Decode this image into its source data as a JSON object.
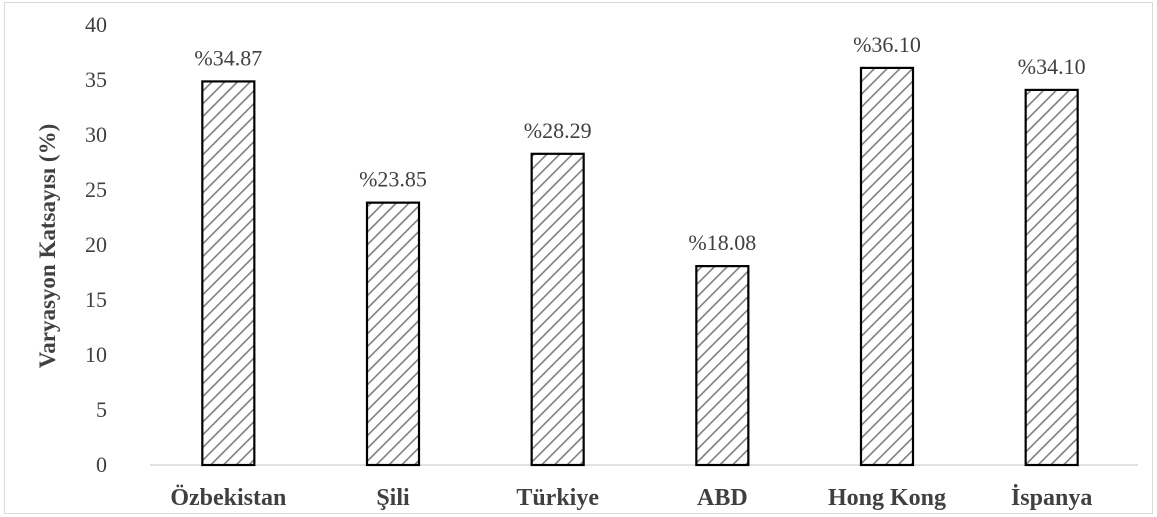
{
  "chart_data": {
    "type": "bar",
    "title": "",
    "xlabel": "",
    "ylabel": "Varyasyon Katsayısı (%)",
    "ylim": [
      0,
      40
    ],
    "yticks": [
      0,
      5,
      10,
      15,
      20,
      25,
      30,
      35,
      40
    ],
    "grid": false,
    "legend": "none",
    "categories": [
      "Özbekistan",
      "Şili",
      "Türkiye",
      "ABD",
      "Hong Kong",
      "İspanya"
    ],
    "values": [
      34.87,
      23.85,
      28.29,
      18.08,
      36.1,
      34.1
    ],
    "data_labels": [
      "%34.87",
      "%23.85",
      "%28.29",
      "%18.08",
      "%36.10",
      "%34.10"
    ],
    "bar_style": "diagonal-hatch",
    "colors": {
      "bar_fill": "#ffffff",
      "bar_outline": "#000000",
      "hatch": "#7f7f7f",
      "axis_line": "#d9d9d9",
      "text": "#404040"
    }
  }
}
